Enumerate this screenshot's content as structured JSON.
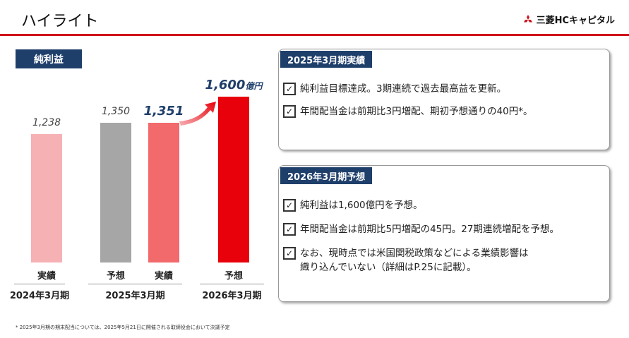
{
  "header": {
    "title": "ハイライト",
    "logo_text": "三菱HCキャピタル",
    "accent_color": "#d0121b"
  },
  "chart_label": "純利益",
  "chart_data": {
    "type": "bar",
    "categories": [
      "実績",
      "予想",
      "実績",
      "予想"
    ],
    "periods": [
      "2024年3月期",
      "2025年3月期",
      "2026年3月期"
    ],
    "values": [
      1238,
      1350,
      1351,
      1600
    ],
    "value_labels": [
      "1,238",
      "1,350",
      "1,351",
      "1,600"
    ],
    "highlight_unit": "億円",
    "colors": [
      "#f6b1b4",
      "#a6a6a6",
      "#f26a6c",
      "#e8000b"
    ],
    "ylim": [
      0,
      1600
    ]
  },
  "panels": [
    {
      "title": "2025年3月期実績",
      "items": [
        "純利益目標達成。3期連続で過去最高益を更新。",
        "年間配当金は前期比3円増配、期初予想通りの40円*。"
      ]
    },
    {
      "title": "2026年3月期予想",
      "items": [
        "純利益は1,600億円を予想。",
        "年間配当金は前期比5円増配の45円。27期連続増配を予想。",
        "なお、現時点では米国関税政策などによる業績影響は\n織り込んでいない（詳細はP.25に記載）。"
      ]
    }
  ],
  "footnote": "* 2025年3月期の期末配当については、2025年5月21日に開催される取締役会において決議予定"
}
